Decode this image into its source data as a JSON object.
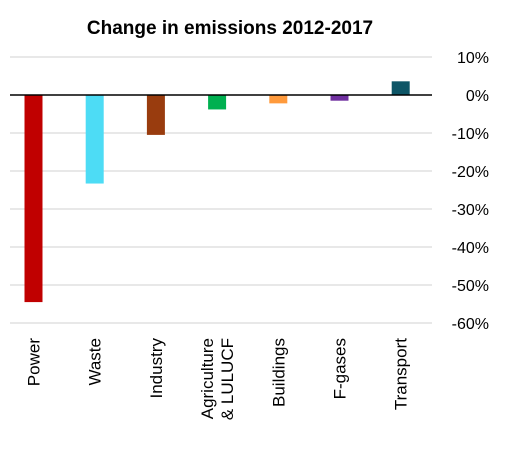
{
  "chart_data": {
    "type": "bar",
    "title": "Change in emissions 2012-2017",
    "xlabel": "",
    "ylabel": "",
    "ylim": [
      -60,
      10
    ],
    "y_ticks": [
      10,
      0,
      -10,
      -20,
      -30,
      -40,
      -50,
      -60
    ],
    "y_tick_labels": [
      "10%",
      "0%",
      "-10%",
      "-20%",
      "-30%",
      "-40%",
      "-50%",
      "-60%"
    ],
    "grid": true,
    "legend": "none",
    "categories": [
      [
        "Power"
      ],
      [
        "Waste"
      ],
      [
        "Industry"
      ],
      [
        "Agriculture",
        "& LULUCF"
      ],
      [
        "Buildings"
      ],
      [
        "F-gases"
      ],
      [
        "Transport"
      ]
    ],
    "values": [
      -54.5,
      -23.3,
      -10.5,
      -3.8,
      -2.2,
      -1.5,
      3.6
    ],
    "colors": [
      "#c00000",
      "#4ddcf5",
      "#993c0e",
      "#00b050",
      "#ff9a3c",
      "#7030a0",
      "#0d5566"
    ]
  }
}
